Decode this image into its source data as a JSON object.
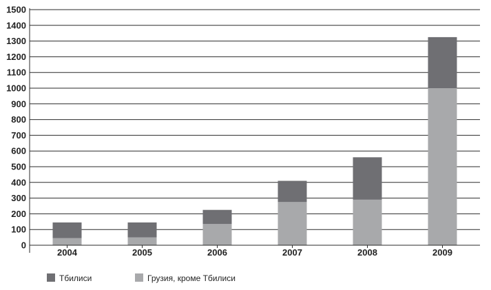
{
  "chart_data": {
    "type": "bar",
    "stacked": true,
    "categories": [
      "2004",
      "2005",
      "2006",
      "2007",
      "2008",
      "2009"
    ],
    "series": [
      {
        "name": "Грузия, кроме Тбилиси",
        "values": [
          45,
          50,
          135,
          275,
          290,
          1000
        ],
        "color": "#a8a9ab"
      },
      {
        "name": "Тбилиси",
        "values": [
          100,
          95,
          90,
          135,
          270,
          325
        ],
        "color": "#6f6f73"
      }
    ],
    "ylim": [
      0,
      1500
    ],
    "yticks": [
      "0",
      "100",
      "200",
      "300",
      "400",
      "500",
      "600",
      "700",
      "800",
      "900",
      "1000",
      "1100",
      "1200",
      "1300",
      "1400",
      "1500"
    ],
    "grid": true,
    "legend_position": "bottom-left",
    "legend": [
      "Тбилиси",
      "Грузия, кроме Тбилиси"
    ]
  }
}
